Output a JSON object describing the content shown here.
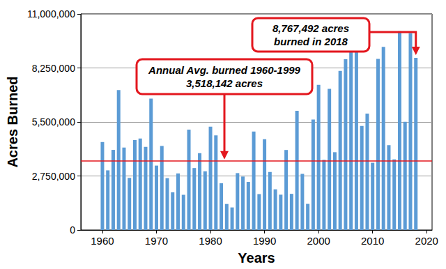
{
  "chart_data": {
    "type": "bar",
    "x_label": "Years",
    "y_label": "Acres Burned",
    "x": [
      1960,
      1961,
      1962,
      1963,
      1964,
      1965,
      1966,
      1967,
      1968,
      1969,
      1970,
      1971,
      1972,
      1973,
      1974,
      1975,
      1976,
      1977,
      1978,
      1979,
      1980,
      1981,
      1982,
      1983,
      1984,
      1985,
      1986,
      1987,
      1988,
      1989,
      1990,
      1991,
      1992,
      1993,
      1994,
      1995,
      1996,
      1997,
      1998,
      1999,
      2000,
      2001,
      2002,
      2003,
      2004,
      2005,
      2006,
      2007,
      2008,
      2009,
      2010,
      2011,
      2012,
      2013,
      2014,
      2015,
      2016,
      2017,
      2018
    ],
    "values": [
      4478188,
      3036219,
      4078894,
      7120768,
      4197309,
      2652112,
      4574389,
      4658586,
      4231996,
      6689081,
      3278565,
      4278472,
      2641166,
      1915273,
      2879095,
      1791327,
      5109926,
      3152644,
      3910913,
      2986826,
      5260825,
      4814206,
      2382036,
      1323666,
      1148409,
      2896147,
      2719162,
      2447296,
      5009290,
      1827310,
      4621621,
      2953578,
      2069929,
      1797574,
      4073579,
      1840546,
      6065998,
      2856959,
      1329704,
      5626093,
      7393493,
      3570911,
      7184712,
      3960842,
      8097880,
      8689389,
      9873745,
      9328045,
      5292468,
      5921786,
      3422724,
      8711367,
      9326238,
      4319546,
      3595613,
      10125149,
      5509995,
      10026086,
      8767492
    ],
    "color": "#5b9bd5",
    "xlim": [
      1956,
      2021
    ],
    "xticks": [
      1960,
      1970,
      1980,
      1990,
      2000,
      2010,
      2020
    ],
    "ylim": [
      0,
      11000000
    ],
    "yticks": [
      0,
      {
        "value": 2750000,
        "label": "2,750,000"
      },
      {
        "value": 5500000,
        "label": "5,500,000"
      },
      {
        "value": 8250000,
        "label": "8,250,000"
      },
      {
        "value": 11000000,
        "label": "11,000,000"
      }
    ],
    "grid": true,
    "reference_line": {
      "value": 3518142,
      "color": "#e3171e",
      "label": [
        "Annual Avg. burned 1960-1999",
        "3,518,142 acres"
      ]
    },
    "annotations": [
      {
        "x": 2018,
        "y": 8767492,
        "label": [
          "8,767,492 acres",
          "burned in 2018"
        ]
      }
    ]
  }
}
